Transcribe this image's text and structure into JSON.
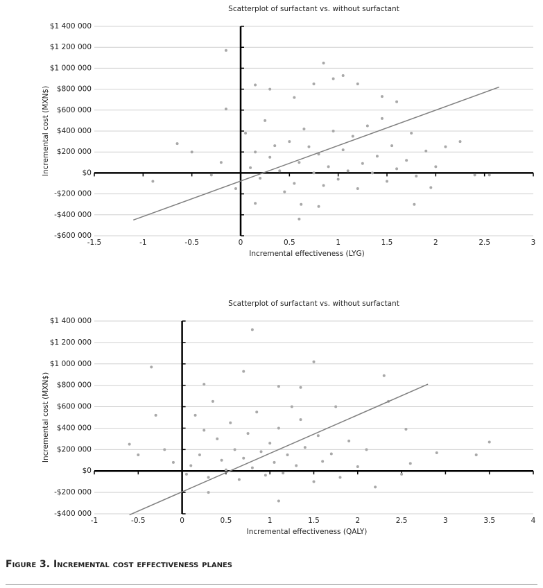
{
  "chart_data": [
    {
      "type": "scatter",
      "title": "Scatterplot of  surfactant vs. without surfactant",
      "xlabel": "Incremental effectiveness (LYG)",
      "ylabel": "Incremental cost (MXN$)",
      "xlim": [
        -1.5,
        3
      ],
      "xticks": [
        -1.5,
        -1,
        -0.5,
        0,
        0.5,
        1,
        1.5,
        2,
        2.5,
        3
      ],
      "ylim": [
        -600000,
        1400000
      ],
      "yticks": [
        {
          "value": -600000,
          "label": "-$600 000"
        },
        {
          "value": -400000,
          "label": "-$400 000"
        },
        {
          "value": -200000,
          "label": "-$200 000"
        },
        {
          "value": 0,
          "label": "$0"
        },
        {
          "value": 200000,
          "label": "$200 000"
        },
        {
          "value": 400000,
          "label": "$400 000"
        },
        {
          "value": 600000,
          "label": "$600 000"
        },
        {
          "value": 800000,
          "label": "$800 000"
        },
        {
          "value": 1000000,
          "label": "$1 000 000"
        },
        {
          "value": 1200000,
          "label": "$1 200 000"
        },
        {
          "value": 1400000,
          "label": "$1 400 000"
        }
      ],
      "grid": true,
      "series": [
        {
          "color": "#a8a8a8",
          "x": [
            -0.15,
            0.85,
            1.05,
            0.95,
            0.75,
            0.15,
            0.6,
            0.62,
            0.8,
            1.78,
            0.15,
            -0.9,
            -0.65,
            -0.5,
            -0.15,
            2.25,
            2.1,
            1.95,
            2.4,
            2.55,
            1.45,
            1.6,
            1.2,
            0.3,
            0.55,
            0.1,
            0.2,
            0.3,
            0.4,
            0.5,
            0.55,
            0.6,
            0.7,
            0.75,
            0.8,
            0.85,
            0.9,
            0.95,
            1.0,
            1.05,
            1.1,
            1.15,
            1.2,
            1.25,
            1.3,
            1.35,
            1.4,
            1.5,
            1.55,
            1.6,
            1.7,
            1.8,
            1.9,
            2.0,
            -0.2,
            -0.3,
            0.05,
            0.25,
            0.45,
            0.65,
            1.45,
            1.75,
            -0.05,
            0.35,
            0.15
          ],
          "values": [
            1170000,
            1050000,
            930000,
            900000,
            850000,
            840000,
            -440000,
            -300000,
            -320000,
            -300000,
            -290000,
            -80000,
            280000,
            200000,
            610000,
            300000,
            250000,
            -140000,
            -20000,
            -20000,
            730000,
            680000,
            850000,
            800000,
            720000,
            50000,
            -50000,
            150000,
            20000,
            300000,
            -100000,
            100000,
            250000,
            0,
            180000,
            -120000,
            60000,
            400000,
            -60000,
            220000,
            20000,
            350000,
            -150000,
            90000,
            450000,
            0,
            160000,
            -80000,
            260000,
            40000,
            120000,
            -30000,
            210000,
            60000,
            100000,
            -20000,
            380000,
            500000,
            -180000,
            420000,
            520000,
            380000,
            -150000,
            260000,
            200000
          ]
        }
      ],
      "reference_line": {
        "color": "#808080",
        "x": [
          -1.1,
          2.65
        ],
        "y": [
          -450000,
          820000
        ]
      }
    },
    {
      "type": "scatter",
      "title": "Scatterplot of  surfactant vs. without surfactant",
      "xlabel": "Incremental effectiveness (QALY)",
      "ylabel": "Incremental cost (MXN$)",
      "xlim": [
        -1,
        4
      ],
      "xticks": [
        -1,
        -0.5,
        0,
        0.5,
        1,
        1.5,
        2,
        2.5,
        3,
        3.5,
        4
      ],
      "ylim": [
        -400000,
        1400000
      ],
      "yticks": [
        {
          "value": -400000,
          "label": "-$400 000"
        },
        {
          "value": -200000,
          "label": "-$200 000"
        },
        {
          "value": 0,
          "label": "$0"
        },
        {
          "value": 200000,
          "label": "$200 000"
        },
        {
          "value": 400000,
          "label": "$400 000"
        },
        {
          "value": 600000,
          "label": "$600 000"
        },
        {
          "value": 800000,
          "label": "$800 000"
        },
        {
          "value": 1000000,
          "label": "$1 000 000"
        },
        {
          "value": 1200000,
          "label": "$1 200 000"
        },
        {
          "value": 1400000,
          "label": "$1 400 000"
        }
      ],
      "grid": true,
      "series": [
        {
          "color": "#a8a8a8",
          "x": [
            -0.35,
            0.8,
            1.5,
            2.3,
            0.7,
            -0.6,
            2.9,
            3.35,
            3.5,
            0.25,
            1.1,
            1.35,
            1.1,
            0.3,
            2.5,
            2.6,
            -0.5,
            -0.3,
            2.35,
            2.55,
            0.1,
            0.2,
            0.3,
            0.4,
            0.45,
            0.5,
            0.55,
            0.6,
            0.65,
            0.7,
            0.75,
            0.8,
            0.85,
            0.9,
            0.95,
            1.0,
            1.05,
            1.1,
            1.15,
            1.2,
            1.25,
            1.3,
            1.4,
            1.5,
            1.55,
            1.6,
            1.7,
            1.8,
            1.9,
            2.0,
            2.1,
            2.2,
            -0.1,
            -0.2,
            0.05,
            0.35,
            0.15,
            1.35,
            1.75,
            0.25
          ],
          "values": [
            970000,
            1320000,
            1020000,
            890000,
            930000,
            250000,
            170000,
            150000,
            270000,
            810000,
            790000,
            780000,
            -280000,
            -200000,
            -30000,
            70000,
            150000,
            520000,
            650000,
            390000,
            50000,
            150000,
            -60000,
            300000,
            100000,
            10000,
            450000,
            200000,
            -80000,
            120000,
            350000,
            30000,
            550000,
            180000,
            -40000,
            260000,
            80000,
            400000,
            -20000,
            150000,
            600000,
            50000,
            220000,
            -100000,
            330000,
            90000,
            160000,
            -60000,
            280000,
            40000,
            200000,
            -150000,
            80000,
            200000,
            -30000,
            650000,
            520000,
            480000,
            600000,
            380000
          ]
        }
      ],
      "reference_line": {
        "color": "#808080",
        "x": [
          -0.6,
          2.8
        ],
        "y": [
          -410000,
          810000
        ]
      }
    }
  ],
  "caption": "Figure 3. Incremental cost effectiveness planes"
}
